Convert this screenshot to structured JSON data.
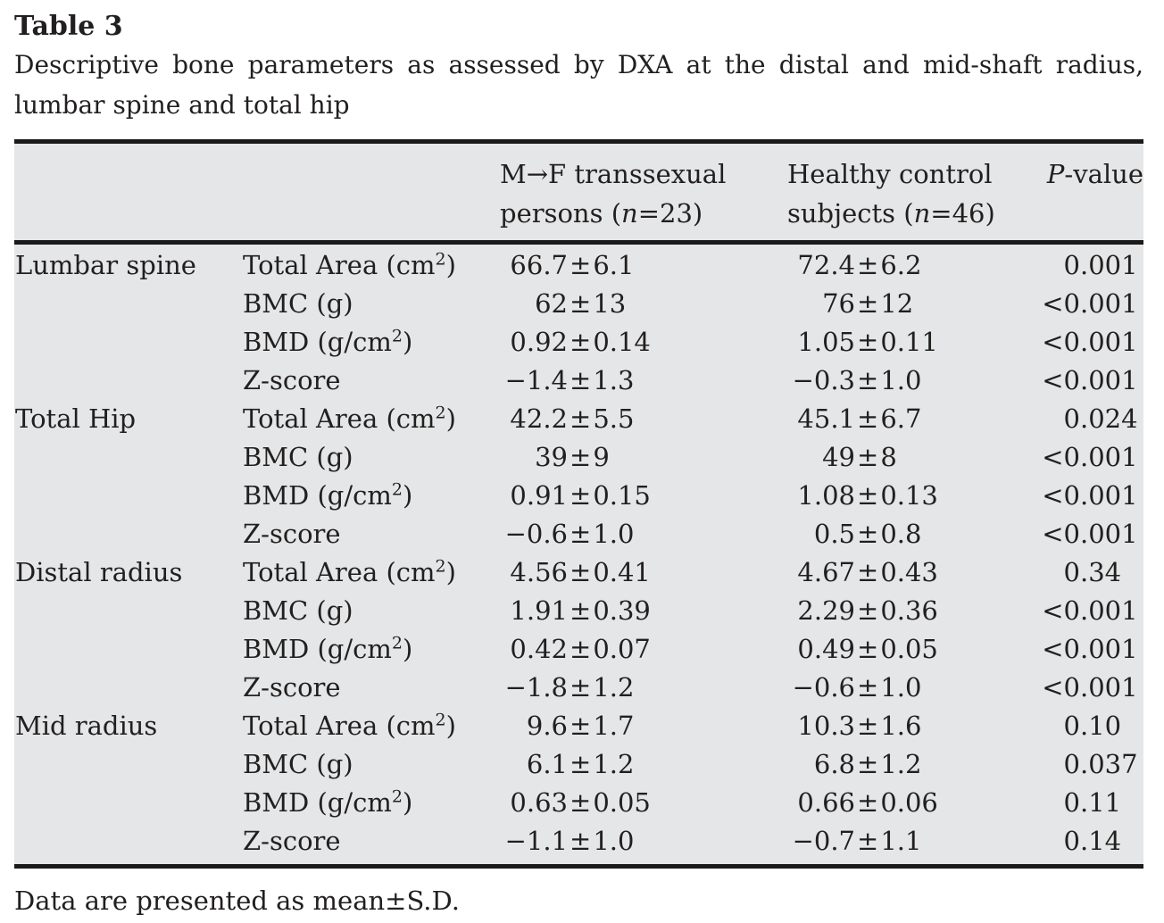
{
  "title": "Table 3",
  "caption": "Descriptive bone parameters as assessed by DXA at the distal and mid-shaft radius, lumbar spine and total hip",
  "footnote": "Data are presented as mean±S.D.",
  "colors": {
    "table_background": "#e5e6e7",
    "rule": "#1a1a1a",
    "text": "#221f1f"
  },
  "table": {
    "headers": {
      "group": "",
      "parameter": "",
      "mf": {
        "line1": "M→F transsexual",
        "line2_pre": "persons (",
        "n": "n",
        "line2_post": "=23)"
      },
      "hc": {
        "line1": "Healthy control",
        "line2_pre": "subjects (",
        "n": "n",
        "line2_post": "=46)"
      },
      "p": {
        "italic": "P",
        "rest": "-value"
      }
    },
    "rows": [
      {
        "group": "Lumbar spine",
        "param": {
          "pre": "Total Area (cm",
          "sup": "2",
          "post": ")"
        },
        "mf": "66.7±6.1",
        "hc": "72.4±6.2",
        "p": "0.001"
      },
      {
        "group": "",
        "param": {
          "pre": "BMC (g)",
          "sup": "",
          "post": ""
        },
        "mf": "62±13",
        "hc": "76±12",
        "p": "<0.001"
      },
      {
        "group": "",
        "param": {
          "pre": "BMD (g/cm",
          "sup": "2",
          "post": ")"
        },
        "mf": "0.92±0.14",
        "hc": "1.05±0.11",
        "p": "<0.001"
      },
      {
        "group": "",
        "param": {
          "pre": "Z-score",
          "sup": "",
          "post": ""
        },
        "mf": "−1.4±1.3",
        "hc": "−0.3±1.0",
        "p": "<0.001"
      },
      {
        "group": "Total Hip",
        "param": {
          "pre": "Total Area (cm",
          "sup": "2",
          "post": ")"
        },
        "mf": "42.2±5.5",
        "hc": "45.1±6.7",
        "p": "0.024"
      },
      {
        "group": "",
        "param": {
          "pre": "BMC (g)",
          "sup": "",
          "post": ""
        },
        "mf": "39±9",
        "hc": "49±8",
        "p": "<0.001"
      },
      {
        "group": "",
        "param": {
          "pre": "BMD (g/cm",
          "sup": "2",
          "post": ")"
        },
        "mf": "0.91±0.15",
        "hc": "1.08±0.13",
        "p": "<0.001"
      },
      {
        "group": "",
        "param": {
          "pre": "Z-score",
          "sup": "",
          "post": ""
        },
        "mf": "−0.6±1.0",
        "hc": "0.5±0.8",
        "p": "<0.001"
      },
      {
        "group": "Distal radius",
        "param": {
          "pre": "Total Area (cm",
          "sup": "2",
          "post": ")"
        },
        "mf": "4.56±0.41",
        "hc": "4.67±0.43",
        "p": "0.34"
      },
      {
        "group": "",
        "param": {
          "pre": "BMC (g)",
          "sup": "",
          "post": ""
        },
        "mf": "1.91±0.39",
        "hc": "2.29±0.36",
        "p": "<0.001"
      },
      {
        "group": "",
        "param": {
          "pre": "BMD (g/cm",
          "sup": "2",
          "post": ")"
        },
        "mf": "0.42±0.07",
        "hc": "0.49±0.05",
        "p": "<0.001"
      },
      {
        "group": "",
        "param": {
          "pre": "Z-score",
          "sup": "",
          "post": ""
        },
        "mf": "−1.8±1.2",
        "hc": "−0.6±1.0",
        "p": "<0.001"
      },
      {
        "group": "Mid radius",
        "param": {
          "pre": "Total Area (cm",
          "sup": "2",
          "post": ")"
        },
        "mf": "9.6±1.7",
        "hc": "10.3±1.6",
        "p": "0.10"
      },
      {
        "group": "",
        "param": {
          "pre": "BMC (g)",
          "sup": "",
          "post": ""
        },
        "mf": "6.1±1.2",
        "hc": "6.8±1.2",
        "p": "0.037"
      },
      {
        "group": "",
        "param": {
          "pre": "BMD (g/cm",
          "sup": "2",
          "post": ")"
        },
        "mf": "0.63±0.05",
        "hc": "0.66±0.06",
        "p": "0.11"
      },
      {
        "group": "",
        "param": {
          "pre": "Z-score",
          "sup": "",
          "post": ""
        },
        "mf": "−1.1±1.0",
        "hc": "−0.7±1.1",
        "p": "0.14"
      }
    ]
  }
}
